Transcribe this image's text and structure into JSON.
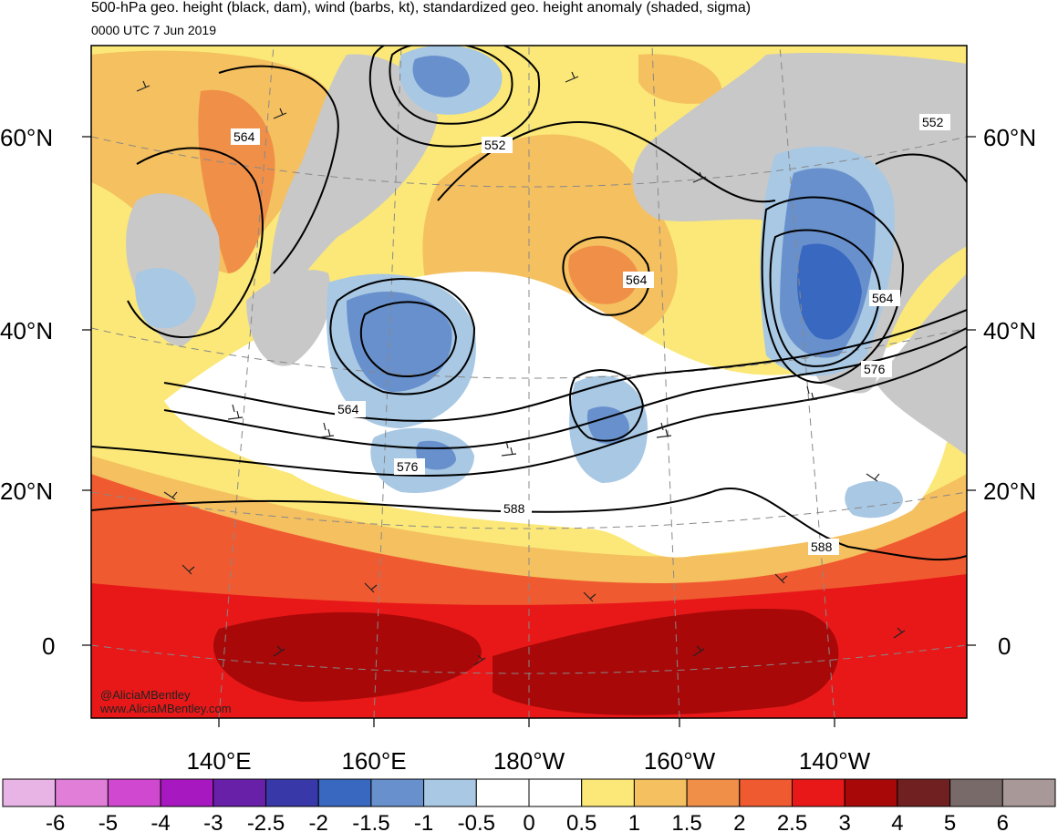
{
  "header": {
    "title": "500-hPa geo. height (black, dam), wind (barbs, kt), standardized geo. height anomaly (shaded, sigma)",
    "valid_time": "0000 UTC 7 Jun 2019"
  },
  "map": {
    "lat_labels": [
      "60°N",
      "40°N",
      "20°N",
      "0"
    ],
    "lon_labels": [
      "140°E",
      "160°E",
      "180°W",
      "160°W",
      "140°W"
    ],
    "contour_labels": [
      "564",
      "552",
      "564",
      "552",
      "564",
      "576",
      "564",
      "576",
      "588",
      "588"
    ],
    "credit_handle": "@AliciaMBentley",
    "credit_site": "www.AliciaMBentley.com"
  },
  "legend": {
    "colors": [
      "#e8b4e6",
      "#e07ed8",
      "#d048d0",
      "#a818c0",
      "#6820a8",
      "#3838a8",
      "#3868c0",
      "#6890cc",
      "#a8c8e4",
      "#ffffff",
      "#ffffff",
      "#fbe878",
      "#f5c060",
      "#f09048",
      "#f05a30",
      "#e81818",
      "#a80808",
      "#702020",
      "#786a68",
      "#a89898"
    ],
    "labels": [
      "-6",
      "-5",
      "-4",
      "-3",
      "-2.5",
      "-2",
      "-1.5",
      "-1",
      "-0.5",
      "0",
      "0.5",
      "1",
      "1.5",
      "2",
      "2.5",
      "3",
      "4",
      "5",
      "6"
    ]
  },
  "colors": {
    "frame": "#000000",
    "land": "#c8c8c8",
    "coast": "#555555"
  }
}
